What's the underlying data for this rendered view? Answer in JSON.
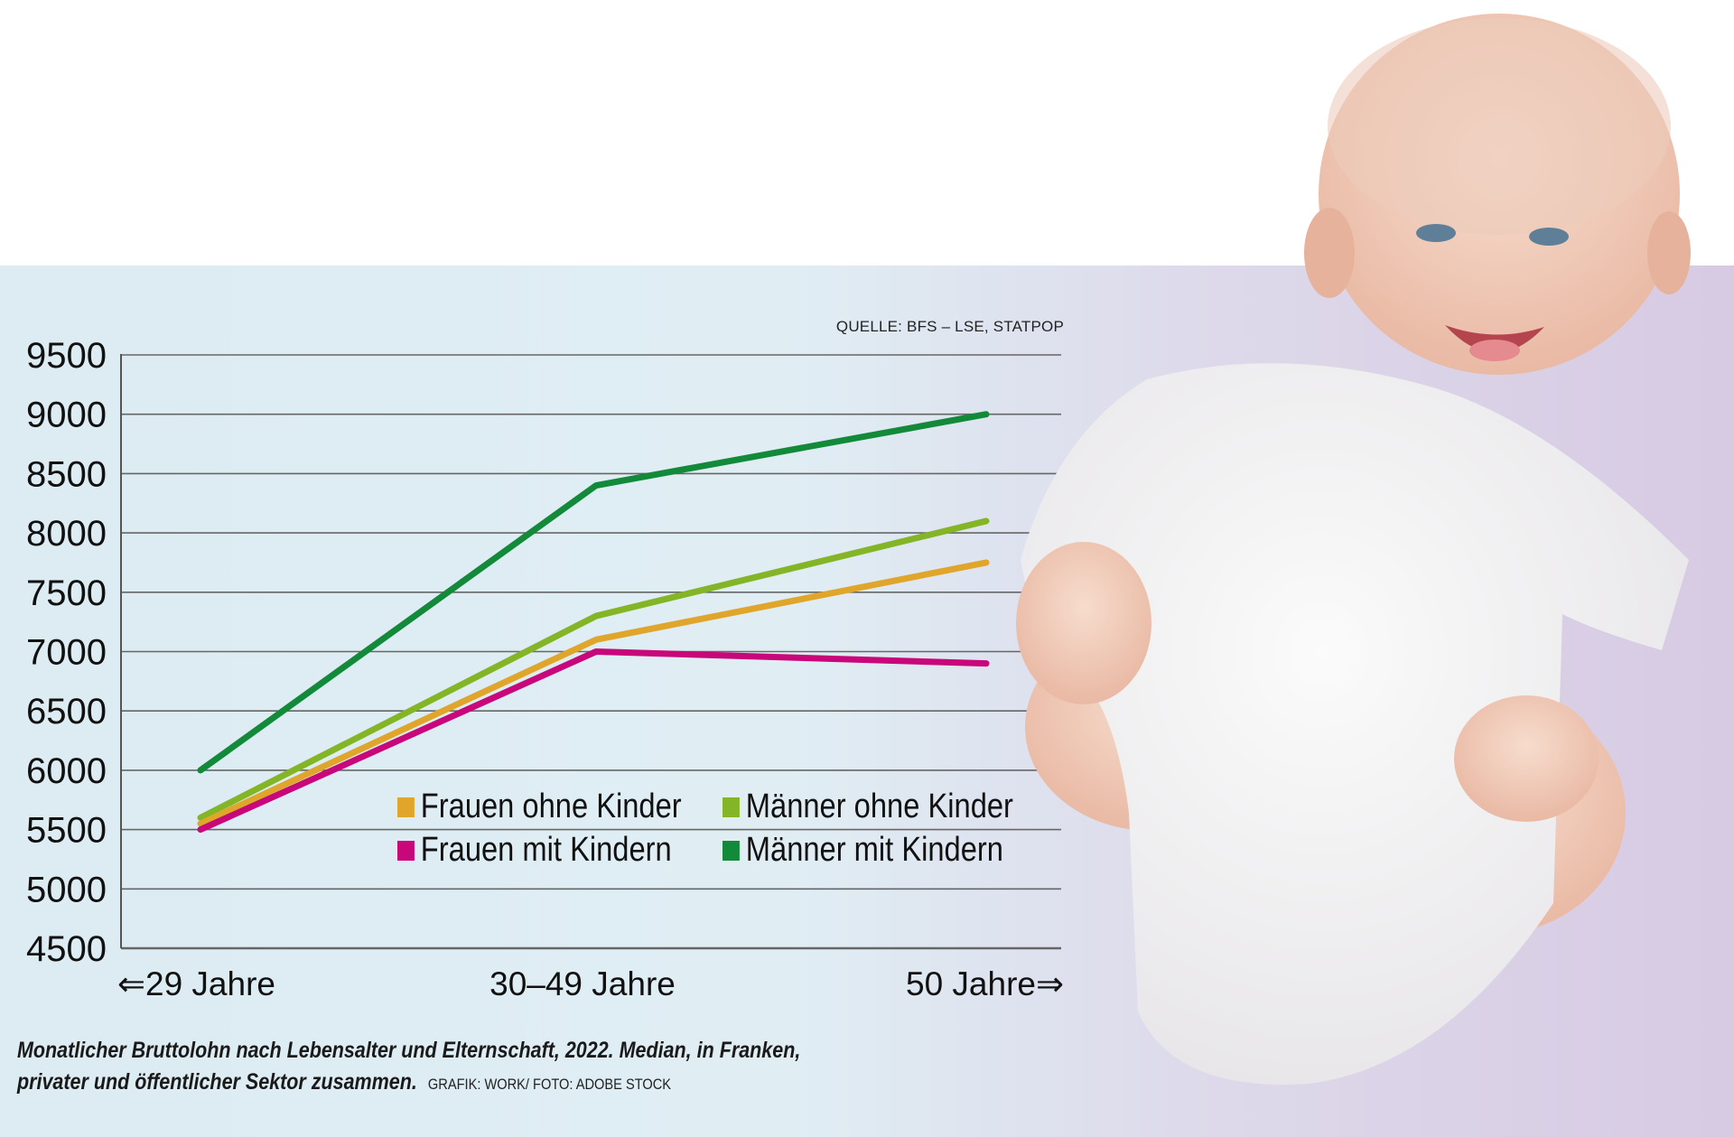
{
  "source_note": "QUELLE: BFS – LSE, STATPOP",
  "caption": {
    "line1": "Monatlicher Bruttolohn nach Lebensalter und Elternschaft, 2022. Median, in Franken,",
    "line2": "privater und öffentlicher Sektor zusammen.",
    "credit": "GRAFIK: WORK/ FOTO: ADOBE STOCK"
  },
  "colors": {
    "frauen_ohne": "#e0a62c",
    "frauen_mit": "#c8077a",
    "maenner_ohne": "#84b526",
    "maenner_mit": "#128a3a",
    "grid": "#666666"
  },
  "chart_data": {
    "type": "line",
    "categories": [
      "⇐29 Jahre",
      "30–49 Jahre",
      "50 Jahre⇒"
    ],
    "ylim": [
      4500,
      9500
    ],
    "yticks": [
      9500,
      9000,
      8500,
      8000,
      7500,
      7000,
      6500,
      6000,
      5500,
      5000,
      4500
    ],
    "grid": true,
    "legend_position": "center-right",
    "series": [
      {
        "name": "Frauen ohne Kinder",
        "color": "#e0a62c",
        "values": [
          5550,
          7100,
          7750
        ]
      },
      {
        "name": "Männer ohne Kinder",
        "color": "#84b526",
        "values": [
          5600,
          7300,
          8100
        ]
      },
      {
        "name": "Frauen mit Kindern",
        "color": "#c8077a",
        "values": [
          5500,
          7000,
          6900
        ]
      },
      {
        "name": "Männer mit Kindern",
        "color": "#128a3a",
        "values": [
          6000,
          8400,
          9000
        ]
      }
    ]
  }
}
